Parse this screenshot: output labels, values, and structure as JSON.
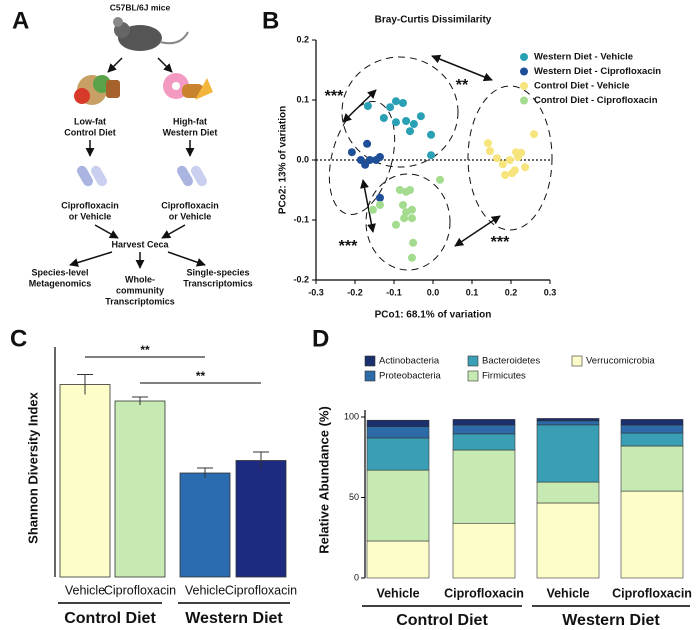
{
  "panel_labels": [
    "A",
    "B",
    "C",
    "D"
  ],
  "diagram": {
    "title": "C57BL/6J mice",
    "nodes": [
      {
        "lines": [
          "Low-fat",
          "Control Diet"
        ]
      },
      {
        "lines": [
          "High-fat",
          "Western Diet"
        ]
      },
      {
        "lines": [
          "Ciprofloxacin",
          "or Vehicle"
        ]
      },
      {
        "lines": [
          "Ciprofloxacin",
          "or Vehicle"
        ]
      },
      {
        "lines": [
          "Harvest Ceca"
        ]
      },
      {
        "lines": [
          "Species-level",
          "Metagenomics"
        ]
      },
      {
        "lines": [
          "Whole-",
          "community",
          "Transcriptomics"
        ]
      },
      {
        "lines": [
          "Single-species",
          "Transcriptomics"
        ]
      }
    ]
  },
  "chart_data": [
    {
      "type": "scatter",
      "title": "Bray-Curtis Dissimilarity",
      "xlabel": "PCo1: 68.1% of variation",
      "ylabel": "PCo2: 13% of variation",
      "xlim": [
        -0.3,
        0.3
      ],
      "ylim": [
        -0.2,
        0.2
      ],
      "xticks": [
        -0.3,
        -0.2,
        -0.1,
        {
          "value": 0,
          "label": "0.0"
        },
        0.1,
        0.2,
        0.3
      ],
      "yticks": [
        -0.2,
        -0.1,
        {
          "value": 0,
          "label": "0.0"
        },
        0.1,
        0.2
      ],
      "legend": "upper right",
      "annotations": [
        "***",
        "**",
        "***",
        "***"
      ],
      "series": [
        {
          "name": "Western Diet - Vehicle",
          "color": "#2aa0b4",
          "x": [
            -0.167,
            -0.11,
            -0.095,
            -0.077,
            -0.126,
            -0.095,
            -0.069,
            -0.049,
            -0.031,
            -0.059,
            -0.005,
            -0.005
          ],
          "values": [
            0.09,
            0.088,
            0.098,
            0.095,
            0.07,
            0.063,
            0.065,
            0.06,
            0.073,
            0.048,
            0.042,
            0.008
          ]
        },
        {
          "name": "Western Diet - Ciprofloxacin",
          "color": "#1f4e99",
          "x": [
            -0.208,
            -0.185,
            -0.169,
            -0.162,
            -0.146,
            -0.136,
            -0.174,
            -0.136
          ],
          "values": [
            0.013,
            0,
            0.027,
            0,
            0,
            0.005,
            -0.008,
            -0.063
          ]
        },
        {
          "name": "Control Diet - Vehicle",
          "color": "#f7e47c",
          "x": [
            0.141,
            0.146,
            0.164,
            0.179,
            0.197,
            0.213,
            0.226,
            0.21,
            0.185,
            0.203,
            0.236,
            0.259,
            0.218
          ],
          "values": [
            0.028,
            0.015,
            0.003,
            -0.007,
            0,
            0.013,
            0.012,
            -0.017,
            -0.025,
            -0.022,
            -0.012,
            0.043,
            0.005
          ]
        },
        {
          "name": "Control Diet - Ciprofloxacin",
          "color": "#a3dc8e",
          "x": [
            -0.154,
            -0.136,
            -0.085,
            -0.069,
            -0.059,
            -0.077,
            -0.069,
            -0.054,
            -0.054,
            -0.095,
            -0.074,
            -0.054,
            -0.051,
            0.018
          ],
          "values": [
            -0.083,
            -0.075,
            -0.05,
            -0.053,
            -0.05,
            -0.075,
            -0.087,
            -0.083,
            -0.097,
            -0.108,
            -0.097,
            -0.163,
            -0.138,
            -0.033
          ]
        }
      ]
    },
    {
      "type": "bar",
      "ylabel": "Shannon Diversity Index",
      "categories": [
        "Vehicle",
        "Ciprofloxacin",
        "Vehicle",
        "Ciprofloxacin"
      ],
      "groups": [
        "Control Diet",
        "Western Diet"
      ],
      "values": [
        3.85,
        3.52,
        2.08,
        2.33
      ],
      "errors": [
        0.2,
        0.08,
        0.1,
        0.17
      ],
      "colors": [
        "#fdfdc9",
        "#c6eab2",
        "#2b6cb0",
        "#1c2a80"
      ],
      "ylim": [
        0,
        4.6
      ],
      "annotations": [
        "**",
        "**"
      ]
    },
    {
      "type": "stacked_bar",
      "ylabel": "Relative Abundance (%)",
      "categories": [
        "Vehicle",
        "Ciprofloxacin",
        "Vehicle",
        "Ciprofloxacin"
      ],
      "groups": [
        "Control Diet",
        "Western Diet"
      ],
      "ylim": [
        0,
        100
      ],
      "yticks": [
        0,
        50,
        100
      ],
      "legend": "top",
      "series": [
        {
          "name": "Verrucomicrobia",
          "color": "#fdfdc9",
          "values": [
            23,
            34,
            46.6,
            54
          ]
        },
        {
          "name": "Firmicutes",
          "color": "#c6eab2",
          "values": [
            44,
            45.5,
            13,
            28
          ]
        },
        {
          "name": "Bacteroidetes",
          "color": "#3a9fb5",
          "values": [
            20,
            10,
            35.5,
            8
          ]
        },
        {
          "name": "Proteobacteria",
          "color": "#2c6aa8",
          "values": [
            7,
            5.5,
            2.5,
            5
          ]
        },
        {
          "name": "Actinobacteria",
          "color": "#1a2f6b",
          "values": [
            4,
            3.5,
            1.5,
            3.5
          ]
        }
      ]
    }
  ]
}
